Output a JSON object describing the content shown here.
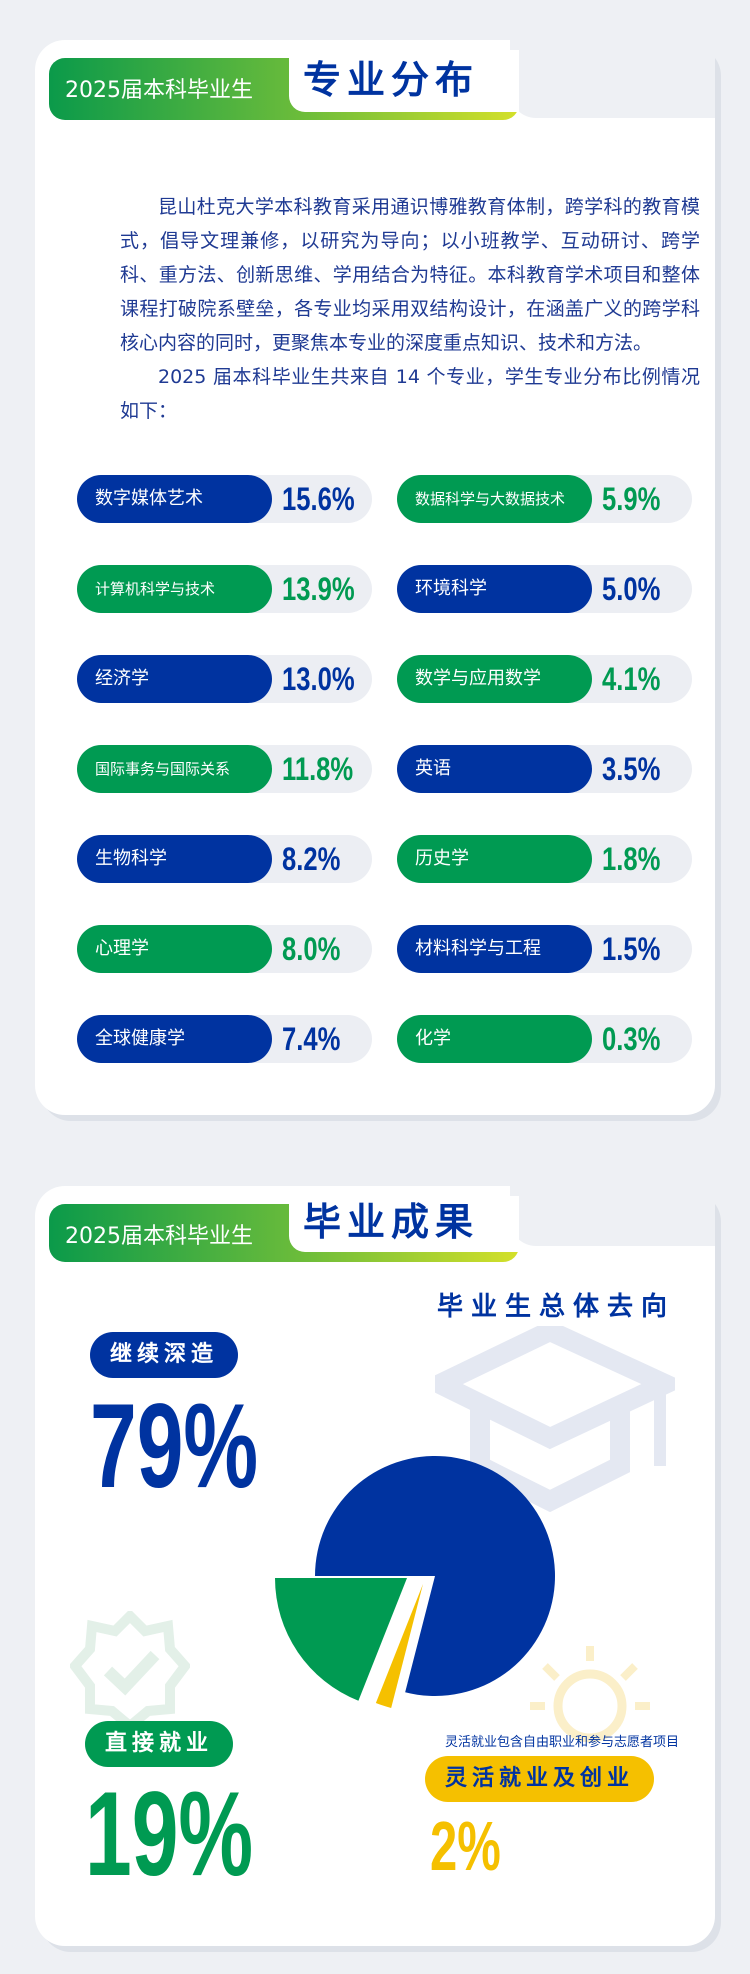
{
  "section1": {
    "tab_label": "2025届本科毕业生",
    "title": "专业分布",
    "paragraph1": "昆山杜克大学本科教育采用通识博雅教育体制，跨学科的教育模式，倡导文理兼修，以研究为导向；以小班教学、互动研讨、跨学科、重方法、创新思维、学用结合为特征。本科教育学术项目和整体课程打破院系壁垒，各专业均采用双结构设计，在涵盖广义的跨学科核心内容的同时，更聚焦本专业的深度重点知识、技术和方法。",
    "paragraph2": "2025 届本科毕业生共来自 14 个专业，学生专业分布比例情况如下：",
    "majors": [
      {
        "name": "数字媒体艺术",
        "value": "15.6%",
        "color": "blue"
      },
      {
        "name": "计算机科学与技术",
        "value": "13.9%",
        "color": "green"
      },
      {
        "name": "经济学",
        "value": "13.0%",
        "color": "blue"
      },
      {
        "name": "国际事务与国际关系",
        "value": "11.8%",
        "color": "green"
      },
      {
        "name": "生物科学",
        "value": "8.2%",
        "color": "blue"
      },
      {
        "name": "心理学",
        "value": "8.0%",
        "color": "green"
      },
      {
        "name": "全球健康学",
        "value": "7.4%",
        "color": "blue"
      },
      {
        "name": "数据科学与大数据技术",
        "value": "5.9%",
        "color": "green"
      },
      {
        "name": "环境科学",
        "value": "5.0%",
        "color": "blue"
      },
      {
        "name": "数学与应用数学",
        "value": "4.1%",
        "color": "green"
      },
      {
        "name": "英语",
        "value": "3.5%",
        "color": "blue"
      },
      {
        "name": "历史学",
        "value": "1.8%",
        "color": "green"
      },
      {
        "name": "材料科学与工程",
        "value": "1.5%",
        "color": "blue"
      },
      {
        "name": "化学",
        "value": "0.3%",
        "color": "green"
      }
    ]
  },
  "section2": {
    "tab_label": "2025届本科毕业生",
    "title": "毕业成果",
    "chart_title": "毕业生总体去向",
    "further_study": {
      "label": "继续深造",
      "value": "79%"
    },
    "employment": {
      "label": "直接就业",
      "value": "19%"
    },
    "flexible": {
      "label": "灵活就业及创业",
      "value": "2%",
      "note": "灵活就业包含自由职业和参与志愿者项目"
    }
  },
  "chart_data": {
    "type": "pie",
    "title": "毕业生总体去向",
    "categories": [
      "继续深造",
      "灵活就业及创业",
      "直接就业"
    ],
    "values": [
      79,
      2,
      19
    ],
    "colors": [
      "#0033a0",
      "#f5c000",
      "#009a52"
    ]
  }
}
